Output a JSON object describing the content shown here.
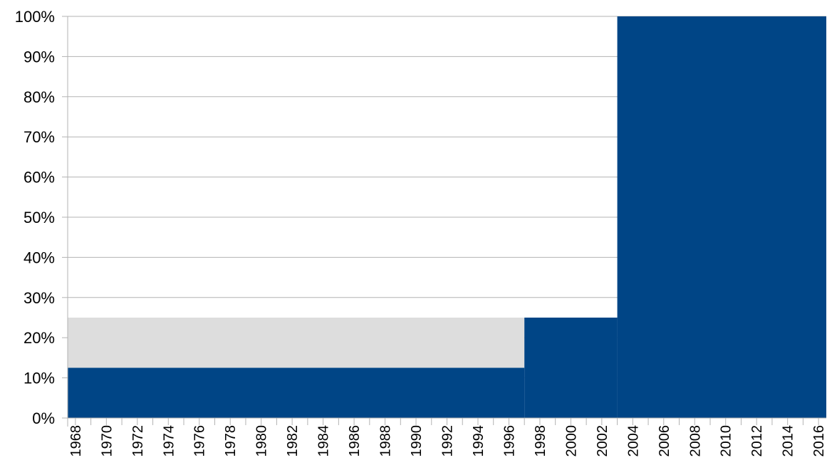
{
  "chart_data": {
    "type": "area",
    "stacked": "percent",
    "grid": true,
    "legend": "none",
    "title": "",
    "xlabel": "",
    "ylabel": "",
    "ylim": [
      0,
      100
    ],
    "xlim": [
      1968,
      2017
    ],
    "y_ticks": [
      "0%",
      "10%",
      "20%",
      "30%",
      "40%",
      "50%",
      "60%",
      "70%",
      "80%",
      "90%",
      "100%"
    ],
    "x_ticks": [
      "1968",
      "1970",
      "1972",
      "1974",
      "1976",
      "1978",
      "1980",
      "1982",
      "1984",
      "1986",
      "1988",
      "1990",
      "1992",
      "1994",
      "1996",
      "1998",
      "2000",
      "2002",
      "2004",
      "2006",
      "2008",
      "2010",
      "2012",
      "2014",
      "2016"
    ],
    "segments": [
      {
        "x": [
          1968,
          1997.5
        ],
        "y0": 0,
        "y1": 12.5,
        "color": "#004586"
      },
      {
        "x": [
          1968,
          1997.5
        ],
        "y0": 12.5,
        "y1": 25,
        "color": "#dddddd"
      },
      {
        "x": [
          1997.5,
          2003.5
        ],
        "y0": 0,
        "y1": 25,
        "color": "#004586"
      },
      {
        "x": [
          2003.5,
          2017
        ],
        "y0": 0,
        "y1": 100,
        "color": "#004586"
      }
    ]
  }
}
